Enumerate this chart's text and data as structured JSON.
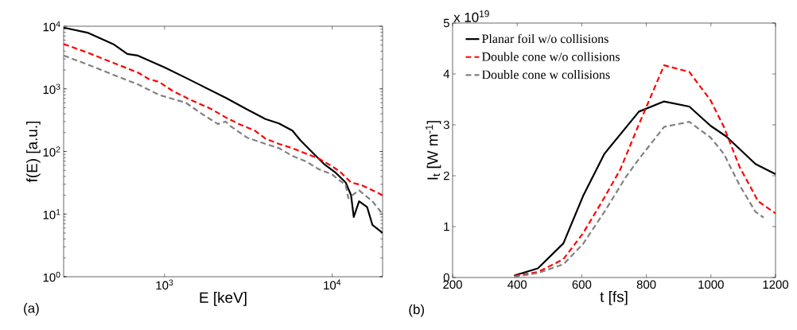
{
  "chart_data": [
    {
      "type": "line",
      "xlabel": "E [keV]",
      "ylabel": "f(E) [a.u.]",
      "log": "xy",
      "xlim": [
        250,
        20000
      ],
      "ylim": [
        1,
        10000
      ],
      "xticks": [
        {
          "value": 1000,
          "label": "10$^{3}$"
        },
        {
          "value": 10000,
          "label": "10$^{4}$"
        }
      ],
      "yticks": [
        {
          "value": 1,
          "label": "10$^{0}$"
        },
        {
          "value": 10,
          "label": "10$^{1}$"
        },
        {
          "value": 100,
          "label": "10$^{2}$"
        },
        {
          "value": 1000,
          "label": "10$^{3}$"
        },
        {
          "value": 10000,
          "label": "10$^{4}$"
        }
      ],
      "annotations": [
        "(a)"
      ],
      "series": [
        {
          "color": "#000000",
          "line_style": "solid",
          "x": [
            250,
            347,
            500,
            600,
            694,
            1000,
            1340,
            1667,
            2319,
            3102,
            4004,
            4815,
            5792,
            6453,
            7734,
            8951,
            10380,
            12040,
            12970,
            13450,
            14480,
            16160,
            17400,
            20000
          ],
          "values": [
            9500,
            7900,
            5100,
            3600,
            3400,
            2200,
            1500,
            1120,
            720,
            470,
            330,
            280,
            215,
            152,
            93,
            63,
            47,
            32,
            20,
            9,
            16,
            13,
            6.7,
            5
          ]
        },
        {
          "color": "#ff0000",
          "line_style": "dashed",
          "x": [
            250,
            347,
            500,
            694,
            803,
            929,
            1116,
            1441,
            1861,
            2319,
            2781,
            3460,
            4004,
            4815,
            5792,
            6935,
            8340,
            9999,
            11180,
            12970,
            15010,
            17400,
            20000
          ],
          "values": [
            5200,
            3800,
            2570,
            1820,
            1440,
            1290,
            930,
            660,
            490,
            350,
            275,
            215,
            160,
            132,
            113,
            93,
            77,
            58,
            47,
            32,
            29,
            24,
            20
          ]
        },
        {
          "color": "#808080",
          "line_style": "dashed",
          "x": [
            250,
            347,
            500,
            694,
            929,
            1340,
            1667,
            2077,
            2319,
            2494,
            3102,
            4004,
            4815,
            5792,
            6935,
            8340,
            9999,
            12040,
            12490,
            14480,
            17400,
            20000
          ],
          "values": [
            3400,
            2450,
            1660,
            1180,
            800,
            600,
            400,
            275,
            300,
            250,
            167,
            132,
            113,
            85,
            70,
            52,
            43,
            29,
            18,
            24,
            16,
            10
          ]
        }
      ]
    },
    {
      "type": "line",
      "xlabel": "t [fs]",
      "ylabel": "I$_{t}$ [W m$^{-1}$]",
      "xlim": [
        200,
        1200
      ],
      "ylim": [
        0,
        5
      ],
      "xticks": [
        200,
        400,
        600,
        800,
        1000,
        1200
      ],
      "yticks": [
        0,
        1,
        2,
        3,
        4,
        5
      ],
      "legend": "top left",
      "annotations": [
        "(b)",
        "x 10$^{19}$"
      ],
      "series": [
        {
          "name": "Planar foil w/o collisions",
          "color": "#000000",
          "line_style": "solid",
          "x": [
            391,
            464,
            543,
            604,
            670,
            777,
            855,
            933,
            999,
            1048,
            1138,
            1200
          ],
          "values": [
            0.04,
            0.18,
            0.67,
            1.6,
            2.43,
            3.26,
            3.46,
            3.36,
            2.98,
            2.77,
            2.23,
            2.03
          ]
        },
        {
          "name": "Double cone w/o collisions",
          "color": "#ff0000",
          "line_style": "dashed",
          "x": [
            391,
            465,
            543,
            604,
            670,
            719,
            777,
            855,
            933,
            999,
            1040,
            1089,
            1146,
            1200
          ],
          "values": [
            0.03,
            0.11,
            0.36,
            0.87,
            1.57,
            2.12,
            3.01,
            4.17,
            4.04,
            3.48,
            2.96,
            2.17,
            1.5,
            1.26
          ]
        },
        {
          "name": "Double cone w collisions",
          "color": "#808080",
          "line_style": "dashed",
          "x": [
            391,
            465,
            543,
            604,
            670,
            736,
            777,
            855,
            933,
            999,
            1040,
            1089,
            1138,
            1163
          ],
          "values": [
            0.01,
            0.09,
            0.26,
            0.66,
            1.29,
            1.97,
            2.33,
            2.96,
            3.06,
            2.75,
            2.43,
            1.81,
            1.29,
            1.18
          ]
        }
      ]
    }
  ]
}
